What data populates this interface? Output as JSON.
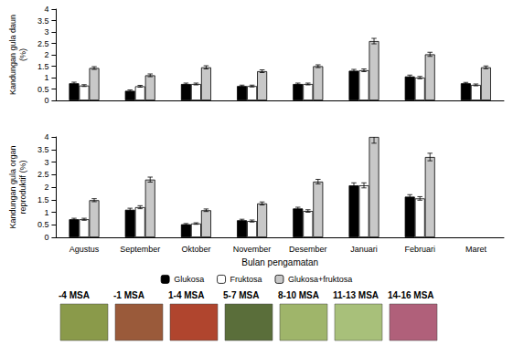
{
  "chart_data": [
    {
      "type": "bar",
      "y_label": "Kandungan gula daun\n(%)",
      "categories": [
        "Agustus",
        "September",
        "Oktober",
        "November",
        "Desember",
        "Januari",
        "Februari",
        "Maret"
      ],
      "series": [
        {
          "name": "Glukosa",
          "color": "#000000",
          "values": [
            0.75,
            0.42,
            0.72,
            0.63,
            0.72,
            1.3,
            1.05,
            0.75
          ],
          "errors": [
            0.05,
            0.04,
            0.04,
            0.04,
            0.04,
            0.06,
            0.06,
            0.04
          ]
        },
        {
          "name": "Fruktosa",
          "color": "#ffffff",
          "values": [
            0.65,
            0.62,
            0.72,
            0.63,
            0.72,
            1.32,
            1.0,
            0.68
          ],
          "errors": [
            0.04,
            0.04,
            0.04,
            0.04,
            0.04,
            0.06,
            0.05,
            0.04
          ]
        },
        {
          "name": "Glukosa+fruktosa",
          "color": "#c8c8c8",
          "values": [
            1.42,
            1.1,
            1.45,
            1.28,
            1.5,
            2.6,
            2.02,
            1.45
          ],
          "errors": [
            0.06,
            0.06,
            0.07,
            0.06,
            0.06,
            0.12,
            0.09,
            0.06
          ]
        }
      ],
      "ylim": [
        0,
        4
      ],
      "yticks": [
        0,
        0.5,
        1,
        1.5,
        2,
        2.5,
        3,
        3.5,
        4
      ],
      "grid": false,
      "tick_labels": "y"
    },
    {
      "type": "bar",
      "x_label": "Bulan pengamatan",
      "y_label": "Kandungan gula organ\nreproduktif (%)",
      "categories": [
        "Agustus",
        "September",
        "Oktober",
        "November",
        "Desember",
        "Januari",
        "Februari",
        "Maret"
      ],
      "series": [
        {
          "name": "Glukosa",
          "color": "#000000",
          "values": [
            0.72,
            1.1,
            0.52,
            0.68,
            1.15,
            2.07,
            1.62,
            null
          ],
          "errors": [
            0.04,
            0.06,
            0.03,
            0.04,
            0.05,
            0.1,
            0.08,
            null
          ]
        },
        {
          "name": "Fruktosa",
          "color": "#ffffff",
          "values": [
            0.72,
            1.2,
            0.55,
            0.65,
            1.05,
            2.07,
            1.55,
            null
          ],
          "errors": [
            0.04,
            0.06,
            0.03,
            0.04,
            0.05,
            0.1,
            0.07,
            null
          ]
        },
        {
          "name": "Glukosa+fruktosa",
          "color": "#c8c8c8",
          "values": [
            1.48,
            2.3,
            1.08,
            1.35,
            2.22,
            4.0,
            3.2,
            null
          ],
          "errors": [
            0.06,
            0.1,
            0.05,
            0.06,
            0.09,
            0.25,
            0.15,
            null
          ]
        }
      ],
      "ylim": [
        0,
        4
      ],
      "yticks": [
        0,
        0.5,
        1,
        1.5,
        2,
        2.5,
        3,
        3.5,
        4
      ],
      "grid": false,
      "legend": "bottom"
    }
  ],
  "photo_labels": [
    "-4 MSA",
    "-1 MSA",
    "1-4 MSA",
    "5-7 MSA",
    "8-10 MSA",
    "11-13 MSA",
    "14-16 MSA"
  ]
}
